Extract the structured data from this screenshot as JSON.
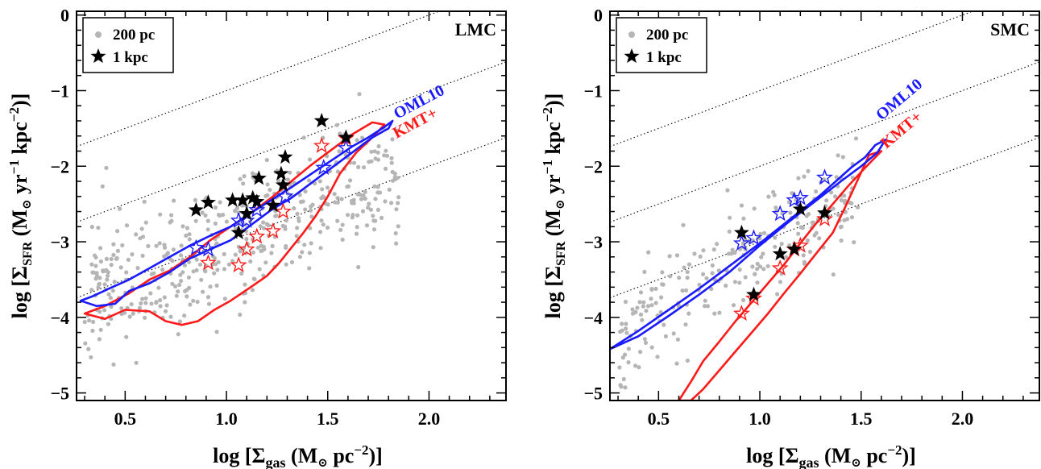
{
  "chart_data": [
    {
      "type": "scatter",
      "title": "LMC",
      "xlabel": "log [Σgas (M⊙ pc⁻²)]",
      "ylabel": "log [ΣSFR (M⊙ yr⁻¹ kpc⁻²)]",
      "xlim": [
        0.26,
        2.38
      ],
      "ylim": [
        -5.1,
        0.05
      ],
      "xticks": [
        "0.5",
        "1.0",
        "1.5",
        "2.0"
      ],
      "yticks": [
        "0",
        "−1",
        "−2",
        "−3",
        "−4",
        "−5"
      ],
      "legend": {
        "placement": "top-left",
        "entries": [
          "200 pc",
          "1 kpc"
        ]
      },
      "model_labels": [
        "OML10",
        "KMT+"
      ],
      "colors": {
        "points_200pc": "#b5b5b5",
        "points_1kpc": "#000000",
        "OML10": "#1a1aff",
        "KMT": "#ff1a1a"
      },
      "series": [
        {
          "name": "200 pc",
          "marker": "dot",
          "cloud": {
            "n": 460,
            "x_range": [
              0.3,
              1.85
            ],
            "slope": 1.05,
            "intercept": -4.05,
            "scatter": 0.45
          }
        },
        {
          "name": "1 kpc",
          "marker": "star",
          "x": [
            0.85,
            0.91,
            1.03,
            1.06,
            1.08,
            1.1,
            1.13,
            1.15,
            1.16,
            1.23,
            1.27,
            1.28,
            1.29,
            1.47,
            1.59
          ],
          "y": [
            -2.58,
            -2.48,
            -2.45,
            -2.88,
            -2.45,
            -2.63,
            -2.42,
            -2.47,
            -2.16,
            -2.52,
            -2.1,
            -2.25,
            -1.88,
            -1.4,
            -1.62
          ]
        },
        {
          "name": "OML10",
          "marker": "open-star",
          "x": [
            0.85,
            0.91,
            1.06,
            1.1,
            1.15,
            1.29,
            1.48,
            1.59
          ],
          "y": [
            -3.08,
            -3.1,
            -2.72,
            -2.72,
            -2.58,
            -2.4,
            -2.02,
            -1.76
          ]
        },
        {
          "name": "KMT+",
          "marker": "open-star",
          "x": [
            0.91,
            1.06,
            1.1,
            1.15,
            1.23,
            1.28,
            1.47,
            1.59
          ],
          "y": [
            -3.28,
            -3.31,
            -3.1,
            -2.93,
            -2.86,
            -2.6,
            -1.73,
            -1.63
          ]
        }
      ],
      "contours": {
        "OML10": [
          [
            0.28,
            -3.78
          ],
          [
            0.34,
            -3.72
          ],
          [
            0.42,
            -3.62
          ],
          [
            0.52,
            -3.5
          ],
          [
            0.62,
            -3.35
          ],
          [
            0.72,
            -3.2
          ],
          [
            0.82,
            -3.05
          ],
          [
            0.92,
            -2.92
          ],
          [
            1.02,
            -2.8
          ],
          [
            1.12,
            -2.62
          ],
          [
            1.22,
            -2.45
          ],
          [
            1.32,
            -2.28
          ],
          [
            1.42,
            -2.1
          ],
          [
            1.52,
            -1.92
          ],
          [
            1.62,
            -1.74
          ],
          [
            1.7,
            -1.62
          ],
          [
            1.78,
            -1.48
          ],
          [
            1.82,
            -1.4
          ],
          [
            1.8,
            -1.5
          ],
          [
            1.72,
            -1.62
          ],
          [
            1.62,
            -1.82
          ],
          [
            1.52,
            -2.02
          ],
          [
            1.42,
            -2.22
          ],
          [
            1.32,
            -2.42
          ],
          [
            1.22,
            -2.58
          ],
          [
            1.12,
            -2.78
          ],
          [
            1.02,
            -2.98
          ],
          [
            0.92,
            -3.1
          ],
          [
            0.82,
            -3.22
          ],
          [
            0.72,
            -3.4
          ],
          [
            0.62,
            -3.55
          ],
          [
            0.52,
            -3.65
          ],
          [
            0.45,
            -3.82
          ],
          [
            0.36,
            -3.85
          ],
          [
            0.28,
            -3.78
          ]
        ],
        "KMT+": [
          [
            0.3,
            -3.95
          ],
          [
            0.4,
            -3.85
          ],
          [
            0.52,
            -3.68
          ],
          [
            0.62,
            -3.5
          ],
          [
            0.72,
            -3.38
          ],
          [
            0.82,
            -3.2
          ],
          [
            0.92,
            -2.98
          ],
          [
            1.02,
            -2.8
          ],
          [
            1.12,
            -2.62
          ],
          [
            1.22,
            -2.42
          ],
          [
            1.32,
            -2.2
          ],
          [
            1.42,
            -1.98
          ],
          [
            1.52,
            -1.78
          ],
          [
            1.62,
            -1.58
          ],
          [
            1.72,
            -1.42
          ],
          [
            1.78,
            -1.45
          ],
          [
            1.72,
            -1.62
          ],
          [
            1.64,
            -1.82
          ],
          [
            1.56,
            -2.1
          ],
          [
            1.5,
            -2.4
          ],
          [
            1.44,
            -2.66
          ],
          [
            1.38,
            -2.88
          ],
          [
            1.32,
            -3.08
          ],
          [
            1.26,
            -3.28
          ],
          [
            1.2,
            -3.45
          ],
          [
            1.12,
            -3.6
          ],
          [
            1.02,
            -3.78
          ],
          [
            0.94,
            -3.9
          ],
          [
            0.86,
            -4.05
          ],
          [
            0.78,
            -4.1
          ],
          [
            0.7,
            -4.05
          ],
          [
            0.62,
            -3.92
          ],
          [
            0.5,
            -3.9
          ],
          [
            0.4,
            -4.02
          ],
          [
            0.3,
            -3.95
          ]
        ]
      },
      "reference_lines": {
        "style": "dotted",
        "intercepts": [
          -2.0,
          -3.0,
          -4.0
        ],
        "slope": 1
      }
    },
    {
      "type": "scatter",
      "title": "SMC",
      "xlabel": "log [Σgas (M⊙ pc⁻²)]",
      "ylabel": "log [ΣSFR (M⊙ yr⁻¹ kpc⁻²)]",
      "xlim": [
        0.26,
        2.38
      ],
      "ylim": [
        -5.1,
        0.05
      ],
      "xticks": [
        "0.5",
        "1.0",
        "1.5",
        "2.0"
      ],
      "yticks": [
        "0",
        "−1",
        "−2",
        "−3",
        "−4",
        "−5"
      ],
      "legend": {
        "placement": "top-left",
        "entries": [
          "200 pc",
          "1 kpc"
        ]
      },
      "model_labels": [
        "OML10",
        "KMT+"
      ],
      "colors": {
        "points_200pc": "#b5b5b5",
        "points_1kpc": "#000000",
        "OML10": "#1a1aff",
        "KMT": "#ff1a1a"
      },
      "series": [
        {
          "name": "200 pc",
          "marker": "dot",
          "cloud": {
            "n": 230,
            "x_range": [
              0.3,
              1.5
            ],
            "slope": 1.6,
            "intercept": -4.7,
            "scatter": 0.35
          }
        },
        {
          "name": "1 kpc",
          "marker": "star",
          "x": [
            0.91,
            0.97,
            1.1,
            1.17,
            1.2,
            1.32
          ],
          "y": [
            -2.88,
            -3.7,
            -3.16,
            -3.1,
            -2.57,
            -2.62
          ]
        },
        {
          "name": "OML10",
          "marker": "open-star",
          "x": [
            0.91,
            0.97,
            1.1,
            1.17,
            1.2,
            1.32
          ],
          "y": [
            -3.02,
            -2.95,
            -2.63,
            -2.45,
            -2.42,
            -2.15
          ]
        },
        {
          "name": "KMT+",
          "marker": "open-star",
          "x": [
            0.91,
            0.97,
            1.1,
            1.17,
            1.2,
            1.32
          ],
          "y": [
            -3.95,
            -3.75,
            -3.35,
            -3.1,
            -3.05,
            -2.7
          ]
        }
      ],
      "contours": {
        "OML10": [
          [
            0.26,
            -4.42
          ],
          [
            0.4,
            -4.18
          ],
          [
            0.55,
            -3.9
          ],
          [
            0.7,
            -3.62
          ],
          [
            0.85,
            -3.32
          ],
          [
            1.0,
            -3.02
          ],
          [
            1.15,
            -2.7
          ],
          [
            1.3,
            -2.38
          ],
          [
            1.45,
            -2.02
          ],
          [
            1.52,
            -1.88
          ],
          [
            1.57,
            -1.72
          ],
          [
            1.62,
            -1.65
          ],
          [
            1.58,
            -1.82
          ],
          [
            1.5,
            -2.0
          ],
          [
            1.4,
            -2.2
          ],
          [
            1.28,
            -2.45
          ],
          [
            1.15,
            -2.72
          ],
          [
            1.0,
            -3.05
          ],
          [
            0.85,
            -3.4
          ],
          [
            0.7,
            -3.7
          ],
          [
            0.55,
            -3.98
          ],
          [
            0.4,
            -4.25
          ],
          [
            0.26,
            -4.42
          ]
        ],
        "KMT+": [
          [
            0.6,
            -5.1
          ],
          [
            0.66,
            -4.85
          ],
          [
            0.72,
            -4.58
          ],
          [
            0.8,
            -4.32
          ],
          [
            0.88,
            -4.05
          ],
          [
            0.96,
            -3.8
          ],
          [
            1.04,
            -3.55
          ],
          [
            1.12,
            -3.3
          ],
          [
            1.2,
            -3.02
          ],
          [
            1.28,
            -2.75
          ],
          [
            1.36,
            -2.5
          ],
          [
            1.44,
            -2.25
          ],
          [
            1.52,
            -2.02
          ],
          [
            1.6,
            -1.8
          ],
          [
            1.54,
            -1.85
          ],
          [
            1.48,
            -2.2
          ],
          [
            1.42,
            -2.55
          ],
          [
            1.36,
            -2.88
          ],
          [
            1.28,
            -3.15
          ],
          [
            1.2,
            -3.42
          ],
          [
            1.12,
            -3.68
          ],
          [
            1.04,
            -3.95
          ],
          [
            0.96,
            -4.2
          ],
          [
            0.88,
            -4.45
          ],
          [
            0.8,
            -4.7
          ],
          [
            0.72,
            -4.95
          ],
          [
            0.66,
            -5.1
          ]
        ]
      },
      "reference_lines": {
        "style": "dotted",
        "intercepts": [
          -2.0,
          -3.0,
          -4.0
        ],
        "slope": 1
      }
    }
  ]
}
